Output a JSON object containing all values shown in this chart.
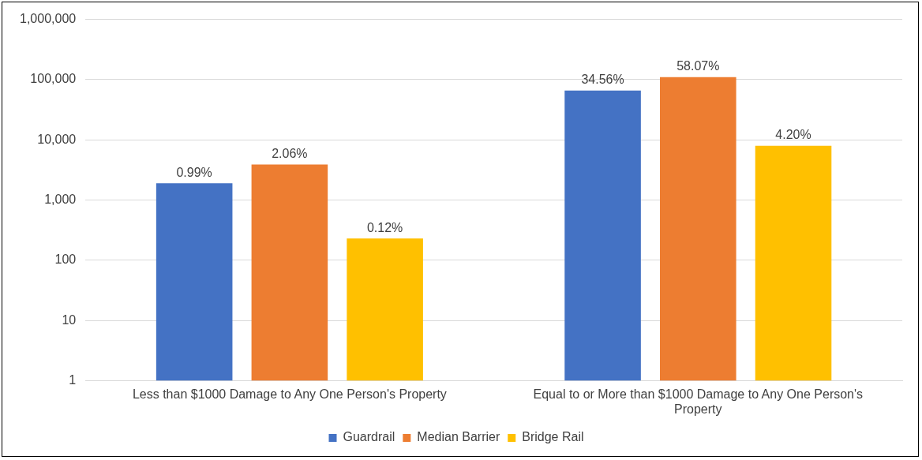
{
  "chart_data": {
    "type": "bar",
    "categories": [
      "Less than $1000 Damage to Any One Person's Property",
      "Equal to or More than $1000 Damage to Any One Person's Property"
    ],
    "series": [
      {
        "name": "Guardrail",
        "color": "#4472c4",
        "values": [
          1900,
          66000
        ]
      },
      {
        "name": "Median Barrier",
        "color": "#ed7d31",
        "values": [
          3900,
          110000
        ]
      },
      {
        "name": "Bridge Rail",
        "color": "#ffc000",
        "values": [
          230,
          8000
        ]
      }
    ],
    "annotations": [
      "0.99%",
      "2.06%",
      "0.12%",
      "34.56%",
      "58.07%",
      "4.20%"
    ],
    "log": "y",
    "ylim": [
      1,
      1000000
    ],
    "yticks": [
      {
        "value": 1,
        "label": "1"
      },
      {
        "value": 10,
        "label": "10"
      },
      {
        "value": 100,
        "label": "100"
      },
      {
        "value": 1000,
        "label": "1,000"
      },
      {
        "value": 10000,
        "label": "10,000"
      },
      {
        "value": 100000,
        "label": "100,000"
      },
      {
        "value": 1000000,
        "label": "1,000,000"
      }
    ],
    "grid": "y",
    "legend": "bottom"
  }
}
